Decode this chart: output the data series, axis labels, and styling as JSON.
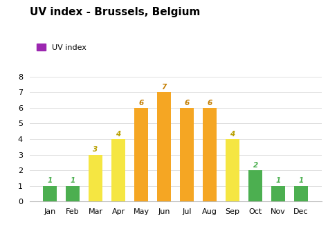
{
  "title": "UV index - Brussels, Belgium",
  "legend_label": "UV index",
  "months": [
    "Jan",
    "Feb",
    "Mar",
    "Apr",
    "May",
    "Jun",
    "Jul",
    "Aug",
    "Sep",
    "Oct",
    "Nov",
    "Dec"
  ],
  "values": [
    1,
    1,
    3,
    4,
    6,
    7,
    6,
    6,
    4,
    2,
    1,
    1
  ],
  "bar_colors": [
    "#4caf50",
    "#4caf50",
    "#f5e642",
    "#f5e642",
    "#f5a623",
    "#f5a623",
    "#f5a623",
    "#f5a623",
    "#f5e642",
    "#4caf50",
    "#4caf50",
    "#4caf50"
  ],
  "label_colors": [
    "#4caf50",
    "#4caf50",
    "#b8a000",
    "#b8a000",
    "#c47d00",
    "#c47d00",
    "#c47d00",
    "#c47d00",
    "#b8a000",
    "#4caf50",
    "#4caf50",
    "#4caf50"
  ],
  "legend_color": "#9c27b0",
  "ylim": [
    0,
    8.5
  ],
  "yticks": [
    0,
    1,
    2,
    3,
    4,
    5,
    6,
    7,
    8
  ],
  "background_color": "#ffffff",
  "grid_color": "#e0e0e0",
  "title_fontsize": 11,
  "label_fontsize": 7.5,
  "tick_fontsize": 8,
  "bar_width": 0.62
}
